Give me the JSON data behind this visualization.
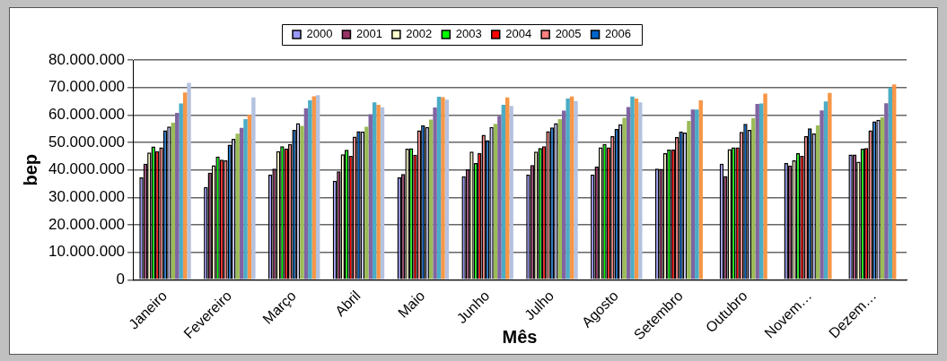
{
  "chart_data": {
    "type": "bar",
    "xlabel": "Mês",
    "ylabel": "bep",
    "categories": [
      "Janeiro",
      "Fevereiro",
      "Março",
      "Abril",
      "Maio",
      "Junho",
      "Julho",
      "Agosto",
      "Setembro",
      "Outubro",
      "Novem…",
      "Dezem…"
    ],
    "ylim": [
      0,
      80000000
    ],
    "yticks": [
      {
        "value": 0,
        "label": "0"
      },
      {
        "value": 10000000,
        "label": "10.000.000"
      },
      {
        "value": 20000000,
        "label": "20.000.000"
      },
      {
        "value": 30000000,
        "label": "30.000.000"
      },
      {
        "value": 40000000,
        "label": "40.000.000"
      },
      {
        "value": 50000000,
        "label": "50.000.000"
      },
      {
        "value": 60000000,
        "label": "60.000.000"
      },
      {
        "value": 70000000,
        "label": "70.000.000"
      },
      {
        "value": 80000000,
        "label": "80.000.000"
      }
    ],
    "grid": "y",
    "legend": "top",
    "series": [
      {
        "name": "2000",
        "color": "#9999ff",
        "values": [
          37300000,
          33800000,
          38300000,
          36100000,
          37300000,
          37700000,
          38300000,
          38300000,
          40500000,
          42300000,
          42500000,
          45600000
        ]
      },
      {
        "name": "2001",
        "color": "#993366",
        "values": [
          42300000,
          39000000,
          40500000,
          39500000,
          38500000,
          40200000,
          41800000,
          41200000,
          40400000,
          37800000,
          41600000,
          45600000
        ]
      },
      {
        "name": "2002",
        "color": "#ffffcc",
        "values": [
          46300000,
          41700000,
          46800000,
          45700000,
          47700000,
          46700000,
          46700000,
          48200000,
          46100000,
          47600000,
          43500000,
          43000000
        ]
      },
      {
        "name": "2003",
        "color": "#00ff00",
        "values": [
          48500000,
          44900000,
          48600000,
          47300000,
          47900000,
          42500000,
          48000000,
          49400000,
          47400000,
          48200000,
          46100000,
          47700000
        ]
      },
      {
        "name": "2004",
        "color": "#ff0000",
        "values": [
          46800000,
          43700000,
          47800000,
          45100000,
          45500000,
          46100000,
          48600000,
          48200000,
          47400000,
          48200000,
          45100000,
          48000000
        ]
      },
      {
        "name": "2005",
        "color": "#ff8080",
        "values": [
          48200000,
          43500000,
          49400000,
          52100000,
          54400000,
          52800000,
          54100000,
          52300000,
          52000000,
          53800000,
          52300000,
          54400000
        ]
      },
      {
        "name": "2006",
        "color": "#0066cc",
        "values": [
          54400000,
          49200000,
          54600000,
          54100000,
          56300000,
          50800000,
          55500000,
          54900000,
          54000000,
          56800000,
          55100000,
          57700000
        ]
      },
      {
        "color": "#ccccff",
        "values": [
          55800000,
          51300000,
          57000000,
          54000000,
          55600000,
          55600000,
          57000000,
          56600000,
          53600000,
          54600000,
          53300000,
          58200000
        ]
      },
      {
        "color": "#9bbb59",
        "values": [
          57200000,
          53200000,
          56000000,
          55700000,
          58300000,
          56800000,
          58500000,
          59000000,
          57800000,
          58900000,
          56200000,
          59100000
        ]
      },
      {
        "color": "#8064a2",
        "values": [
          60800000,
          55300000,
          62400000,
          60300000,
          62700000,
          59600000,
          61600000,
          62900000,
          62000000,
          64000000,
          61700000,
          64300000
        ]
      },
      {
        "color": "#4bacc6",
        "values": [
          64200000,
          58500000,
          65300000,
          64600000,
          66600000,
          63700000,
          66000000,
          66700000,
          62000000,
          64200000,
          64900000,
          70000000
        ]
      },
      {
        "color": "#f79646",
        "values": [
          68200000,
          60000000,
          66800000,
          63700000,
          66500000,
          66400000,
          66700000,
          66000000,
          65300000,
          67800000,
          68000000,
          71100000
        ]
      },
      {
        "color": "#b4c2e0",
        "values": [
          71700000,
          66400000,
          67200000,
          62800000,
          65600000,
          63300000,
          65000000,
          64600000,
          null,
          null,
          null,
          null
        ]
      }
    ]
  }
}
